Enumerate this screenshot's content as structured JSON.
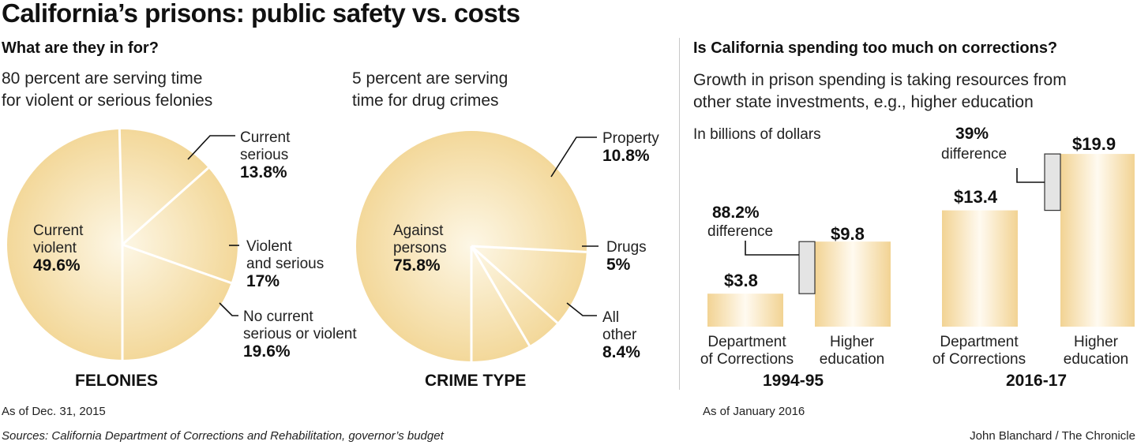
{
  "title": "California’s prisons: public safety vs. costs",
  "left_header": "What are they in for?",
  "right_header": "Is California spending too much on corrections?",
  "pie1_sub": [
    "80 percent are serving time",
    "for violent or serious felonies"
  ],
  "pie2_sub": [
    "5 percent are serving",
    "time for drug crimes"
  ],
  "spend_sub": [
    "Growth in prison spending is taking resources from",
    "other state investments, e.g., higher education"
  ],
  "unit_label": "In billions of dollars",
  "footer_left": "As of Dec. 31, 2015",
  "footer_mid": "As of January 2016",
  "sources": "Sources: California Department of Corrections and Rehabilitation, governor’s budget",
  "credit": "John Blanchard / The Chronicle",
  "colors": {
    "pie_fill": "#f5dea6",
    "pie_center": "#fdf7e6",
    "bar_edge": "#f2d393",
    "bar_center": "#fffaf0",
    "gap": "#e4e4e4"
  },
  "chart_data": [
    {
      "type": "pie",
      "caption": "FELONIES",
      "slices": [
        {
          "label": [
            "Current",
            "violent"
          ],
          "value": 49.6,
          "value_label": "49.6%"
        },
        {
          "label": [
            "Current",
            "serious"
          ],
          "value": 13.8,
          "value_label": "13.8%"
        },
        {
          "label": [
            "Violent",
            "and serious"
          ],
          "value": 17,
          "value_label": "17%"
        },
        {
          "label": [
            "No current",
            "serious or violent"
          ],
          "value": 19.6,
          "value_label": "19.6%"
        }
      ]
    },
    {
      "type": "pie",
      "caption": "CRIME TYPE",
      "slices": [
        {
          "label": [
            "Against",
            "persons"
          ],
          "value": 75.8,
          "value_label": "75.8%"
        },
        {
          "label": [
            "Property"
          ],
          "value": 10.8,
          "value_label": "10.8%"
        },
        {
          "label": [
            "Drugs"
          ],
          "value": 5,
          "value_label": "5%"
        },
        {
          "label": [
            "All",
            "other"
          ],
          "value": 8.4,
          "value_label": "8.4%"
        }
      ]
    },
    {
      "type": "bar",
      "groups": [
        {
          "year": "1994-95",
          "difference": "88.2%",
          "difference_label": "difference",
          "bars": [
            {
              "category": [
                "Department",
                "of Corrections"
              ],
              "value": 3.8,
              "value_label": "$3.8"
            },
            {
              "category": [
                "Higher",
                "education"
              ],
              "value": 9.8,
              "value_label": "$9.8"
            }
          ]
        },
        {
          "year": "2016-17",
          "difference": "39%",
          "difference_label": "difference",
          "bars": [
            {
              "category": [
                "Department",
                "of Corrections"
              ],
              "value": 13.4,
              "value_label": "$13.4"
            },
            {
              "category": [
                "Higher",
                "education"
              ],
              "value": 19.9,
              "value_label": "$19.9"
            }
          ]
        }
      ]
    }
  ]
}
